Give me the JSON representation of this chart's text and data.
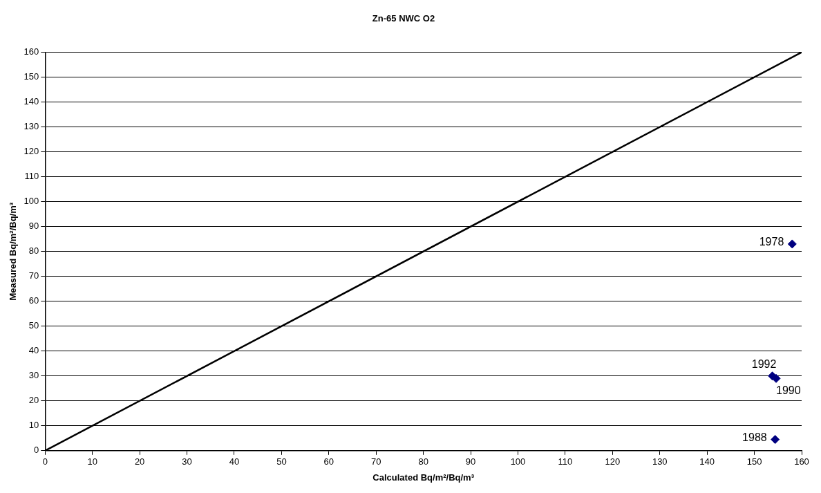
{
  "chart_data": {
    "type": "scatter",
    "title": "Zn-65 NWC O2",
    "xlabel": "Calculated Bq/m²/Bq/m³",
    "ylabel": "Measured Bq/m²/Bq/m³",
    "xlim": [
      0,
      160
    ],
    "xticks": [
      0,
      10,
      20,
      30,
      40,
      50,
      60,
      70,
      80,
      90,
      100,
      110,
      120,
      130,
      140,
      150,
      160
    ],
    "ylim": [
      0,
      160
    ],
    "yticks": [
      0,
      10,
      20,
      30,
      40,
      50,
      60,
      70,
      80,
      90,
      100,
      110,
      120,
      130,
      140,
      150,
      160
    ],
    "grid": "y",
    "legend": false,
    "marker": "diamond",
    "series": [
      {
        "type": "line",
        "color": "#000000",
        "x": [
          0,
          160
        ],
        "values": [
          0,
          160
        ],
        "marker": "none",
        "line_style": "solid"
      },
      {
        "type": "scatter",
        "color": "#000080",
        "x": [
          158,
          153.8,
          154.6,
          154.4
        ],
        "values": [
          83,
          30,
          29,
          4.5
        ]
      }
    ],
    "annotations": [
      {
        "text": "1978",
        "x": 158,
        "y": 83
      },
      {
        "text": "1992",
        "x": 153.8,
        "y": 30
      },
      {
        "text": "1990",
        "x": 154.6,
        "y": 29
      },
      {
        "text": "1988",
        "x": 154.4,
        "y": 4.5
      }
    ]
  }
}
